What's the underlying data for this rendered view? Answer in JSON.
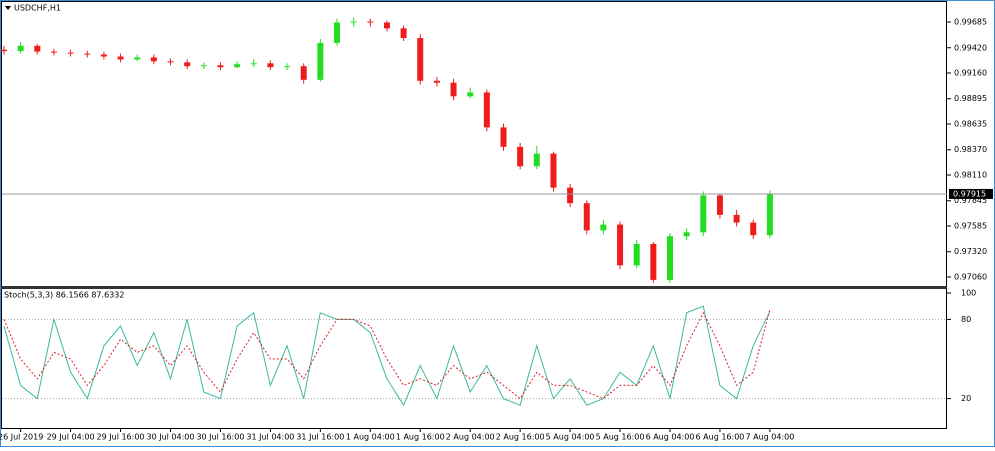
{
  "chart_data": [
    {
      "type": "candlestick",
      "title": "USDCHF,H1",
      "categories": [
        null,
        "26 Jul 2019",
        null,
        null,
        "29 Jul 04:00",
        null,
        null,
        "29 Jul 16:00",
        null,
        null,
        "30 Jul 04:00",
        null,
        null,
        "30 Jul 16:00",
        null,
        null,
        "31 Jul 04:00",
        null,
        null,
        "31 Jul 16:00",
        null,
        null,
        "1 Aug 04:00",
        null,
        null,
        "1 Aug 16:00",
        null,
        null,
        "2 Aug 04:00",
        null,
        null,
        "2 Aug 16:00",
        null,
        null,
        "5 Aug 04:00",
        null,
        null,
        "5 Aug 16:00",
        null,
        null,
        "6 Aug 04:00",
        null,
        null,
        "6 Aug 16:00",
        null,
        null,
        "7 Aug 04:00"
      ],
      "open": [
        0.994,
        0.99385,
        0.9944,
        0.9938,
        0.9937,
        0.9936,
        0.9935,
        0.9933,
        0.993,
        0.9932,
        0.9928,
        0.9927,
        0.9923,
        0.9924,
        0.9922,
        0.9925,
        0.9926,
        0.9922,
        0.9923,
        0.9909,
        0.9947,
        0.9968,
        0.9969,
        0.9968,
        0.9962,
        0.9952,
        0.9908,
        0.9906,
        0.9892,
        0.9896,
        0.986,
        0.984,
        0.982,
        0.9833,
        0.9798,
        0.9782,
        0.9754,
        0.976,
        0.9718,
        0.974,
        0.9703,
        0.9748,
        0.9752,
        0.979,
        0.977,
        0.9762,
        0.9749
      ],
      "high": [
        0.9944,
        0.9948,
        0.9946,
        0.9941,
        0.994,
        0.9939,
        0.9938,
        0.9936,
        0.9935,
        0.9935,
        0.9931,
        0.993,
        0.9927,
        0.9927,
        0.9928,
        0.993,
        0.9929,
        0.9926,
        0.9926,
        0.9951,
        0.9972,
        0.9973,
        0.9972,
        0.997,
        0.9965,
        0.9956,
        0.9912,
        0.991,
        0.9901,
        0.9899,
        0.9864,
        0.9844,
        0.9841,
        0.9835,
        0.9802,
        0.9785,
        0.9765,
        0.9763,
        0.9744,
        0.9742,
        0.9751,
        0.9756,
        0.9794,
        0.9791,
        0.9775,
        0.9765,
        0.9795
      ],
      "low": [
        0.9935,
        0.9936,
        0.9935,
        0.9934,
        0.9933,
        0.9932,
        0.993,
        0.9927,
        0.9928,
        0.9925,
        0.9924,
        0.992,
        0.992,
        0.9919,
        0.9921,
        0.9922,
        0.9919,
        0.9919,
        0.9905,
        0.9907,
        0.9944,
        0.9964,
        0.9964,
        0.9959,
        0.9949,
        0.9904,
        0.9902,
        0.9888,
        0.989,
        0.9856,
        0.9836,
        0.9817,
        0.9817,
        0.9794,
        0.9778,
        0.975,
        0.975,
        0.9714,
        0.9715,
        0.97,
        0.97,
        0.9744,
        0.9748,
        0.9766,
        0.9758,
        0.9745,
        0.9746
      ],
      "close": [
        0.99385,
        0.9944,
        0.9938,
        0.9937,
        0.9936,
        0.9935,
        0.9933,
        0.993,
        0.9932,
        0.9928,
        0.9927,
        0.9923,
        0.9924,
        0.9922,
        0.9925,
        0.9926,
        0.9922,
        0.9923,
        0.9909,
        0.9947,
        0.9968,
        0.9969,
        0.9968,
        0.9962,
        0.9952,
        0.9908,
        0.9906,
        0.9892,
        0.9896,
        0.986,
        0.984,
        0.982,
        0.9833,
        0.9798,
        0.9782,
        0.9754,
        0.976,
        0.9718,
        0.974,
        0.9703,
        0.9748,
        0.9752,
        0.979,
        0.977,
        0.9762,
        0.9749,
        0.97915
      ],
      "up_color": "#22dd22",
      "down_color": "#ee1c1c",
      "ylim": [
        0.96957,
        0.99891
      ],
      "yticks": [
        0.99685,
        {
          "value": 0.9942,
          "label": "0.99420"
        },
        {
          "value": 0.9916,
          "label": "0.99160"
        },
        0.98895,
        0.98635,
        {
          "value": 0.9837,
          "label": "0.98370"
        },
        {
          "value": 0.9811,
          "label": "0.98110"
        },
        0.97845,
        0.97585,
        {
          "value": 0.9732,
          "label": "0.97320"
        },
        {
          "value": 0.9706,
          "label": "0.97060"
        }
      ]
    },
    {
      "type": "line",
      "title": "Stoch(5,3,3) 86.1566 87.6332",
      "series": [
        {
          "color": "#3cb9a0",
          "dashed": false,
          "values": [
            75,
            30,
            20,
            80,
            40,
            20,
            60,
            75,
            45,
            70,
            35,
            80,
            25,
            20,
            75,
            85,
            30,
            60,
            20,
            85,
            80,
            80,
            70,
            35,
            15,
            45,
            20,
            60,
            25,
            45,
            20,
            15,
            60,
            20,
            35,
            15,
            20,
            40,
            30,
            60,
            20,
            85,
            90,
            30,
            20,
            60,
            86.1566
          ]
        },
        {
          "color": "#e02020",
          "dashed": true,
          "values": [
            80,
            50,
            35,
            55,
            50,
            30,
            45,
            65,
            55,
            60,
            45,
            60,
            40,
            25,
            50,
            70,
            50,
            50,
            35,
            60,
            80,
            80,
            75,
            50,
            30,
            35,
            30,
            45,
            35,
            40,
            30,
            20,
            40,
            30,
            30,
            25,
            20,
            30,
            30,
            45,
            30,
            60,
            85,
            60,
            30,
            40,
            87.6332
          ]
        }
      ],
      "ylim": [
        0,
        100
      ],
      "yticks": [
        100,
        80,
        20
      ],
      "levels": [
        80,
        20
      ]
    }
  ]
}
